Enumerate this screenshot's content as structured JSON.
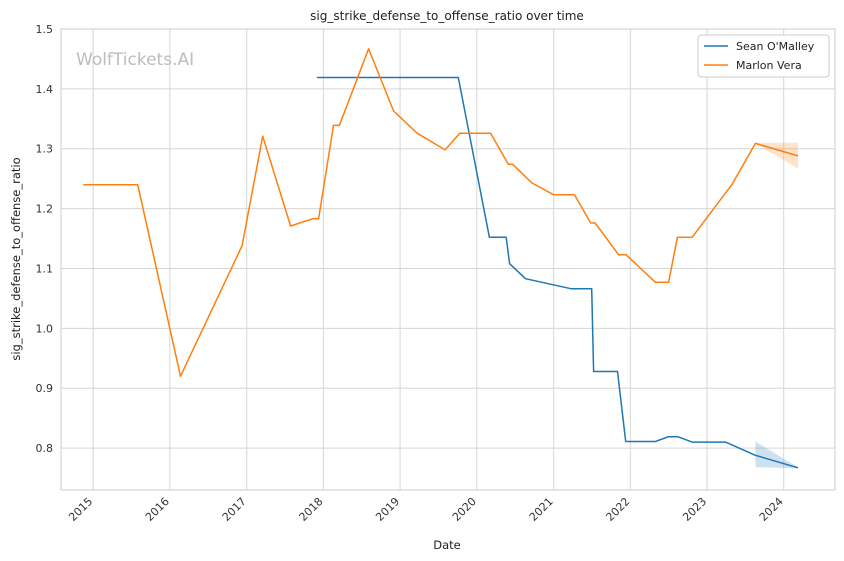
{
  "chart_data": {
    "type": "line",
    "title": "sig_strike_defense_to_offense_ratio over time",
    "xlabel": "Date",
    "ylabel": "sig_strike_defense_to_offense_ratio",
    "watermark": "WolfTickets.AI",
    "xlim": [
      "2014-08-01",
      "2024-09-01"
    ],
    "ylim": [
      0.73,
      1.5
    ],
    "x_ticks": [
      "2015",
      "2016",
      "2017",
      "2018",
      "2019",
      "2020",
      "2021",
      "2022",
      "2023",
      "2024"
    ],
    "y_ticks": [
      0.8,
      0.9,
      1.0,
      1.1,
      1.2,
      1.3,
      1.4,
      1.5
    ],
    "grid": true,
    "legend_position": "top-right",
    "series": [
      {
        "name": "Sean O'Malley",
        "color": "#1f77b4",
        "points": [
          [
            "2017-12-01",
            1.419
          ],
          [
            "2019-10-05",
            1.419
          ],
          [
            "2020-03-01",
            1.152
          ],
          [
            "2020-05-20",
            1.152
          ],
          [
            "2020-06-05",
            1.108
          ],
          [
            "2020-08-20",
            1.083
          ],
          [
            "2021-03-27",
            1.066
          ],
          [
            "2021-07-01",
            1.066
          ],
          [
            "2021-07-10",
            0.928
          ],
          [
            "2021-11-01",
            0.928
          ],
          [
            "2021-12-10",
            0.811
          ],
          [
            "2022-04-30",
            0.811
          ],
          [
            "2022-07-01",
            0.819
          ],
          [
            "2022-08-15",
            0.819
          ],
          [
            "2022-10-22",
            0.81
          ],
          [
            "2023-03-30",
            0.81
          ],
          [
            "2023-08-19",
            0.788
          ],
          [
            "2024-03-09",
            0.767
          ]
        ],
        "band": [
          [
            "2023-08-19",
            0.768,
            0.811
          ],
          [
            "2024-03-09",
            0.766,
            0.768
          ]
        ]
      },
      {
        "name": "Marlon Vera",
        "color": "#ff7f0e",
        "points": [
          [
            "2014-11-15",
            1.24
          ],
          [
            "2015-08-01",
            1.24
          ],
          [
            "2016-02-21",
            0.92
          ],
          [
            "2016-12-10",
            1.138
          ],
          [
            "2017-03-18",
            1.321
          ],
          [
            "2017-07-29",
            1.171
          ],
          [
            "2017-11-11",
            1.183
          ],
          [
            "2017-12-09",
            1.183
          ],
          [
            "2018-02-18",
            1.339
          ],
          [
            "2018-03-18",
            1.339
          ],
          [
            "2018-08-04",
            1.467
          ],
          [
            "2018-12-01",
            1.363
          ],
          [
            "2019-03-23",
            1.326
          ],
          [
            "2019-08-03",
            1.298
          ],
          [
            "2019-10-12",
            1.326
          ],
          [
            "2020-03-07",
            1.326
          ],
          [
            "2020-05-30",
            1.274
          ],
          [
            "2020-06-20",
            1.274
          ],
          [
            "2020-09-19",
            1.243
          ],
          [
            "2021-01-01",
            1.223
          ],
          [
            "2021-04-10",
            1.223
          ],
          [
            "2021-06-26",
            1.176
          ],
          [
            "2021-07-17",
            1.176
          ],
          [
            "2021-11-06",
            1.123
          ],
          [
            "2021-12-11",
            1.123
          ],
          [
            "2022-04-30",
            1.077
          ],
          [
            "2022-07-02",
            1.077
          ],
          [
            "2022-08-13",
            1.152
          ],
          [
            "2022-10-22",
            1.152
          ],
          [
            "2023-04-29",
            1.24
          ],
          [
            "2023-08-19",
            1.309
          ],
          [
            "2024-03-09",
            1.288
          ]
        ],
        "band": [
          [
            "2023-08-19",
            1.309,
            1.31
          ],
          [
            "2024-03-09",
            1.267,
            1.31
          ]
        ]
      }
    ]
  }
}
